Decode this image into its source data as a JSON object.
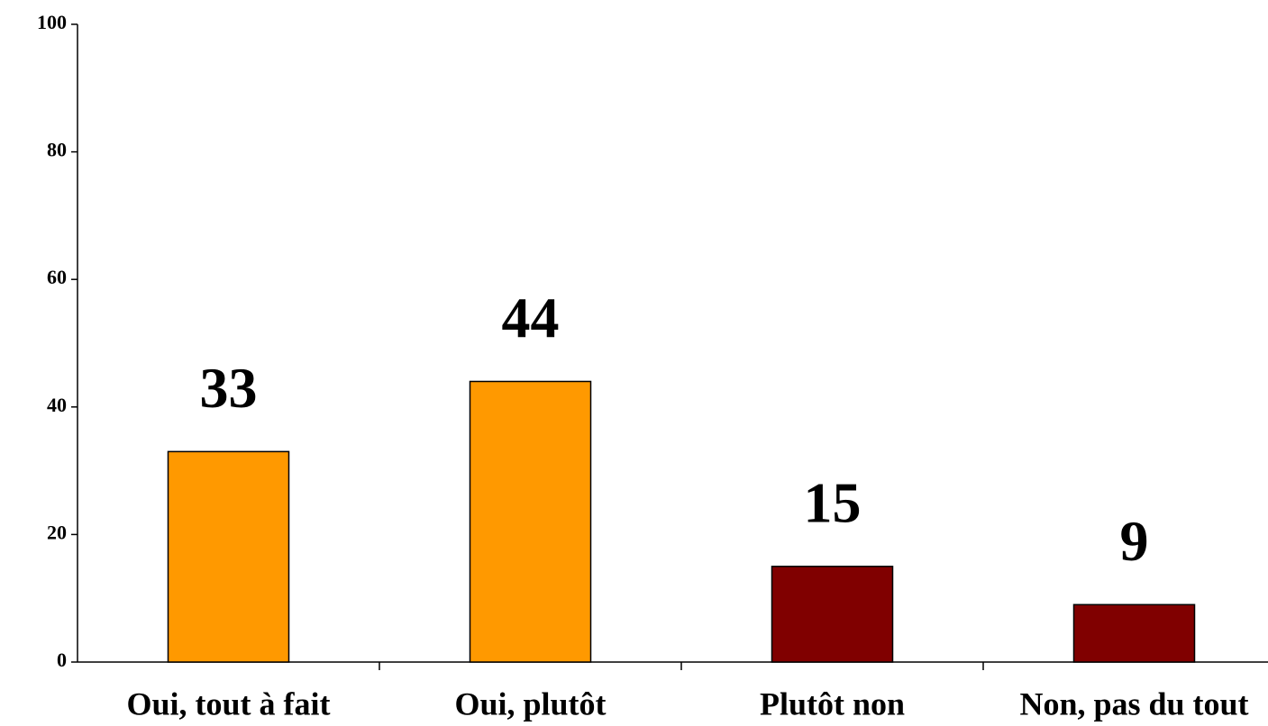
{
  "chart_data": {
    "type": "bar",
    "categories": [
      "Oui, tout à fait",
      "Oui, plutôt",
      "Plutôt non",
      "Non, pas du tout"
    ],
    "values": [
      33,
      44,
      15,
      9
    ],
    "colors": [
      "#ff9900",
      "#ff9900",
      "#800000",
      "#800000"
    ],
    "ylim": [
      0,
      100
    ],
    "yticks": [
      0,
      20,
      40,
      60,
      80,
      100
    ],
    "grid": false
  }
}
